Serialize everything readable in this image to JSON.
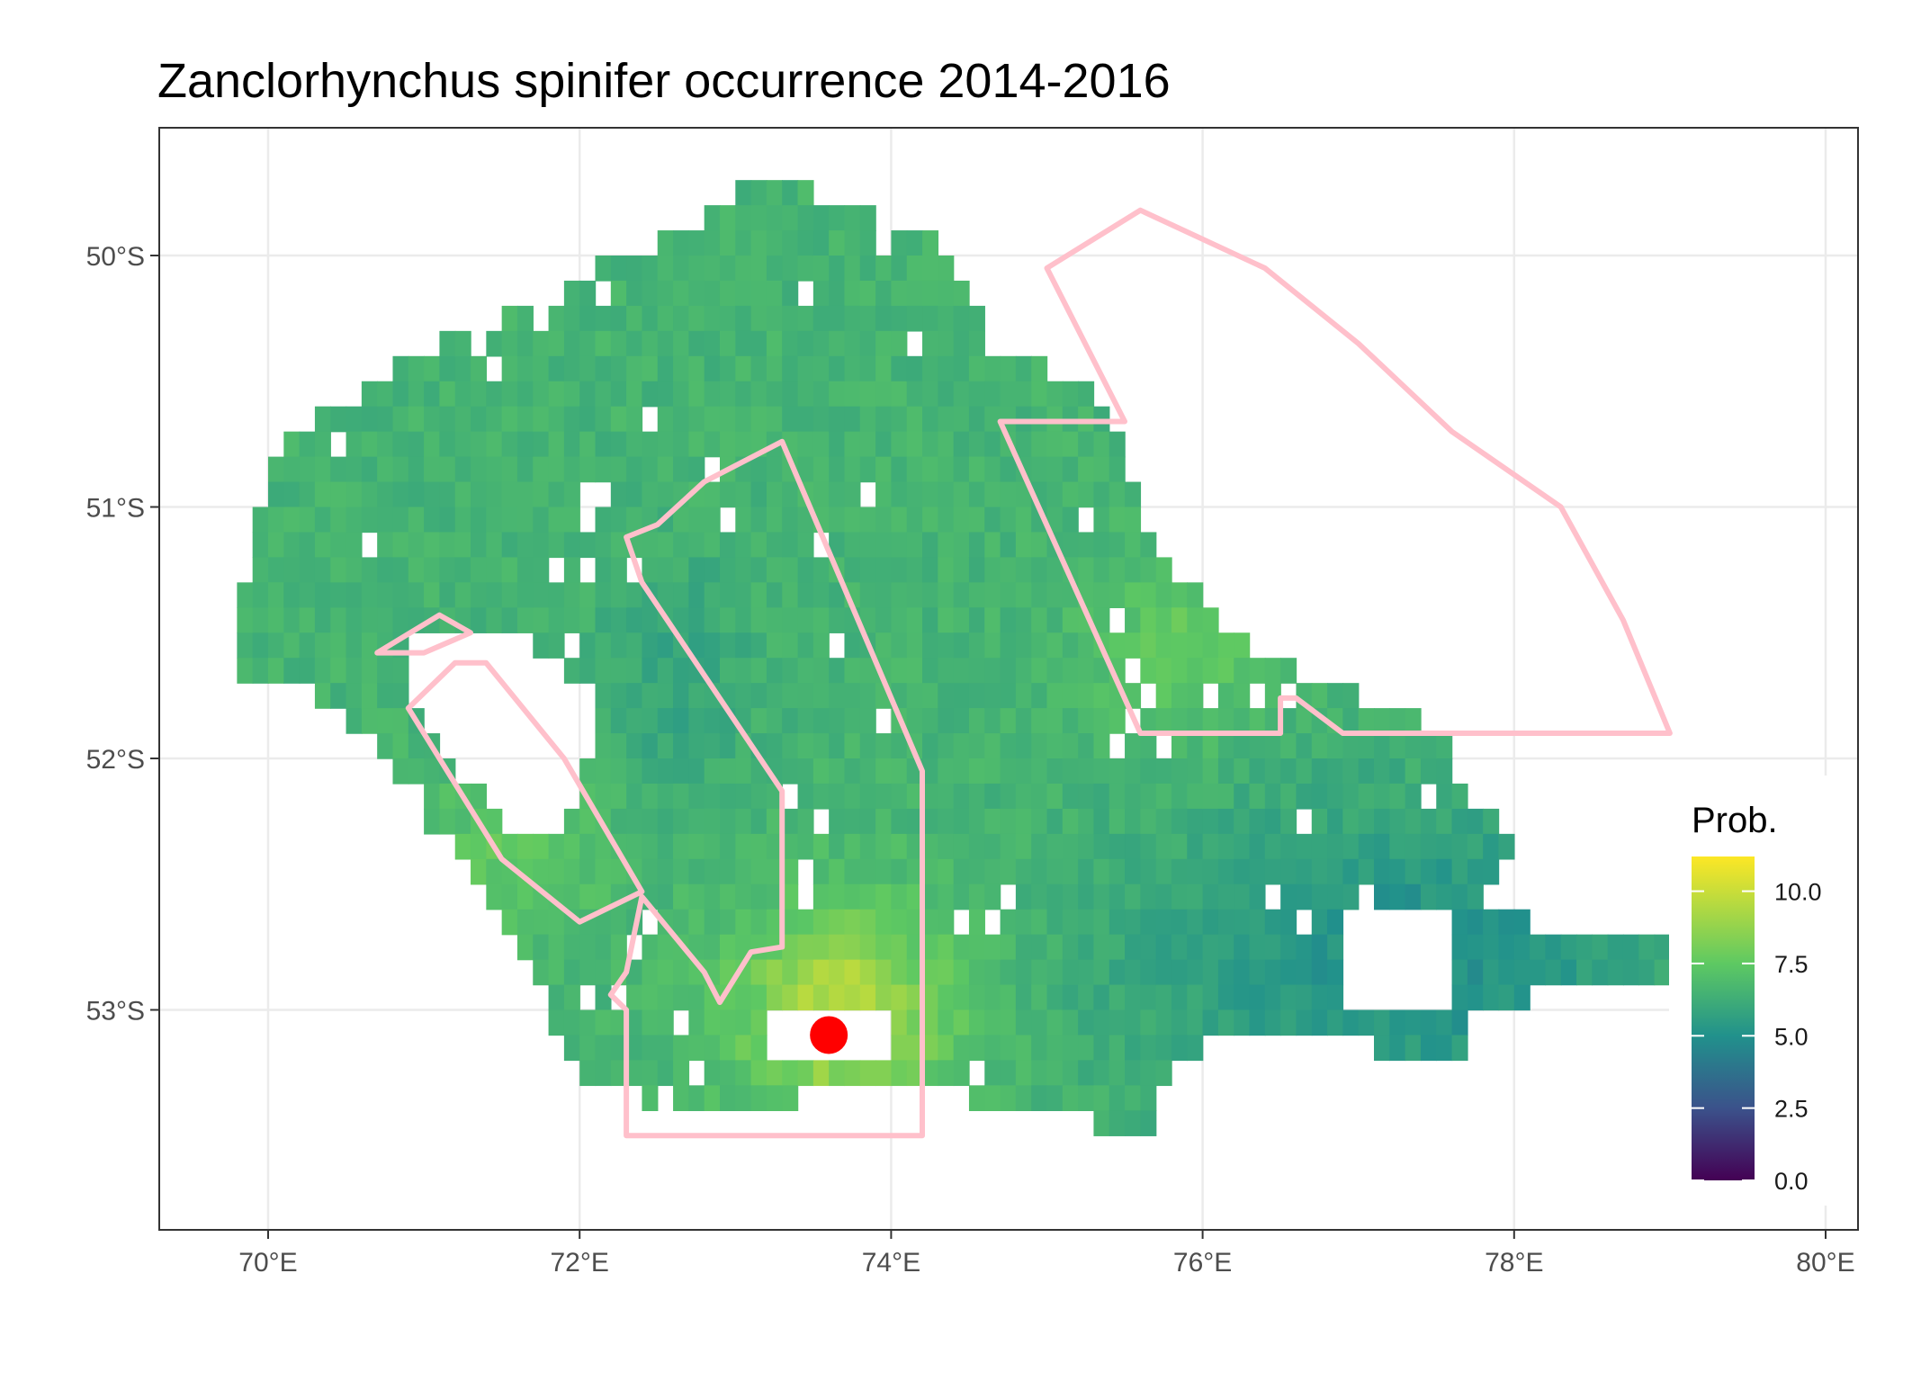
{
  "title": "Zanclorhynchus spinifer  occurrence 2014-2016",
  "colors": {
    "panel_background": "#ffffff",
    "panel_border": "#333333",
    "grid": "#ebebeb",
    "polygon_outline": "#ffc0cb",
    "point": "#ff0000",
    "raster_gradient": [
      "#440154",
      "#3b528b",
      "#21918c",
      "#5ec962",
      "#fde725"
    ]
  },
  "x_axis": {
    "limits": [
      69.3,
      80.3
    ],
    "breaks": [
      70,
      72,
      74,
      76,
      78,
      80
    ],
    "tick_labels": [
      "70°E",
      "72°E",
      "74°E",
      "76°E",
      "78°E",
      "80°E"
    ]
  },
  "y_axis": {
    "limits": [
      -53.9,
      -49.5
    ],
    "breaks": [
      -50,
      -51,
      -52,
      -53
    ],
    "tick_labels": [
      "50°S",
      "51°S",
      "52°S",
      "53°S"
    ]
  },
  "legend": {
    "title": "Prob.",
    "breaks": [
      0.0,
      2.5,
      5.0,
      7.5,
      10.0
    ],
    "labels": [
      "0.0",
      "2.5",
      "5.0",
      "7.5",
      "10.0"
    ],
    "range": [
      0,
      11.2
    ],
    "placement": "right, inside panel"
  },
  "map_data": {
    "raster_cell_deg": 0.1,
    "raster_extent_lon": [
      69.8,
      79.6
    ],
    "raster_extent_lat": [
      -53.5,
      -49.6
    ],
    "value_range": [
      5,
      11
    ],
    "point": {
      "lon": 73.6,
      "lat": -53.1
    },
    "polygons": [
      [
        [
          75.6,
          -49.82
        ],
        [
          75.0,
          -50.05
        ],
        [
          75.5,
          -50.66
        ],
        [
          74.7,
          -50.66
        ],
        [
          75.6,
          -51.9
        ],
        [
          76.5,
          -51.9
        ],
        [
          76.5,
          -51.76
        ],
        [
          76.6,
          -51.76
        ],
        [
          76.9,
          -51.9
        ],
        [
          79.0,
          -51.9
        ],
        [
          78.7,
          -51.45
        ],
        [
          78.3,
          -51.0
        ],
        [
          77.6,
          -50.7
        ],
        [
          77.0,
          -50.35
        ],
        [
          76.4,
          -50.05
        ],
        [
          75.6,
          -49.82
        ]
      ],
      [
        [
          73.3,
          -50.74
        ],
        [
          72.8,
          -50.9
        ],
        [
          72.5,
          -51.07
        ],
        [
          72.3,
          -51.12
        ],
        [
          72.4,
          -51.3
        ],
        [
          73.3,
          -52.13
        ],
        [
          73.3,
          -52.75
        ],
        [
          73.1,
          -52.77
        ],
        [
          72.9,
          -52.97
        ],
        [
          72.8,
          -52.85
        ],
        [
          72.4,
          -52.55
        ],
        [
          72.3,
          -52.85
        ],
        [
          72.2,
          -52.94
        ],
        [
          72.3,
          -53.0
        ],
        [
          72.3,
          -53.5
        ],
        [
          74.2,
          -53.5
        ],
        [
          74.2,
          -52.05
        ],
        [
          73.3,
          -50.74
        ]
      ],
      [
        [
          71.2,
          -51.62
        ],
        [
          70.9,
          -51.8
        ],
        [
          71.5,
          -52.4
        ],
        [
          72.0,
          -52.65
        ],
        [
          72.4,
          -52.53
        ],
        [
          71.9,
          -52.0
        ],
        [
          71.4,
          -51.62
        ],
        [
          71.2,
          -51.62
        ]
      ],
      [
        [
          70.7,
          -51.58
        ],
        [
          71.1,
          -51.43
        ],
        [
          71.3,
          -51.5
        ],
        [
          71.0,
          -51.58
        ],
        [
          70.7,
          -51.58
        ]
      ]
    ]
  }
}
